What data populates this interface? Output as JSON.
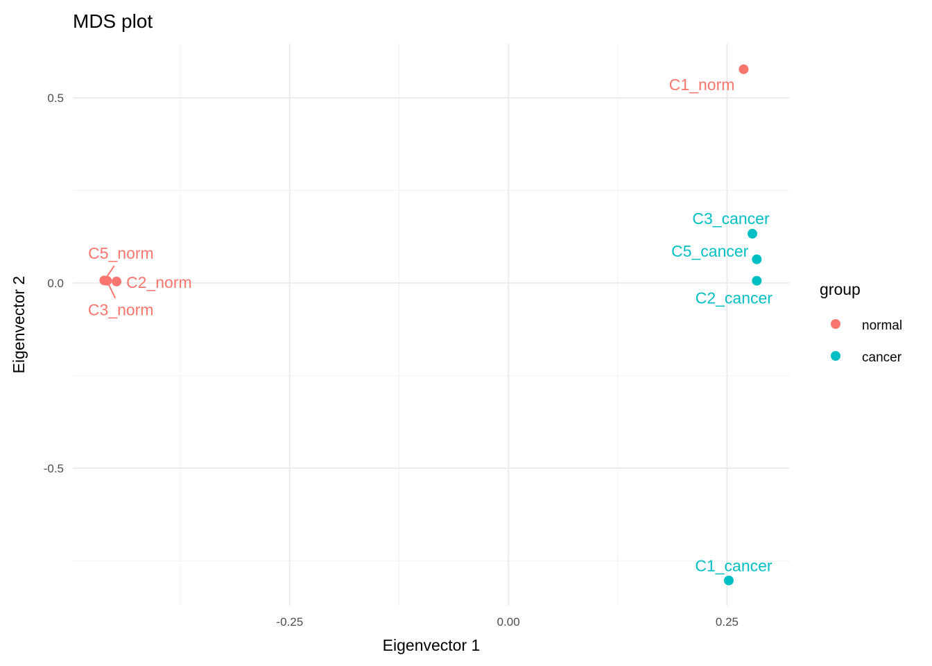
{
  "chart_data": {
    "type": "scatter",
    "title": "MDS plot",
    "xlabel": "Eigenvector 1",
    "ylabel": "Eigenvector 2",
    "xlim": [
      -0.498,
      0.321
    ],
    "ylim": [
      -0.871,
      0.646
    ],
    "x_ticks": [
      -0.25,
      0.0,
      0.25
    ],
    "x_tick_labels": [
      "-0.25",
      "0.00",
      "0.25"
    ],
    "y_ticks": [
      0.5,
      0.0,
      -0.5
    ],
    "y_tick_labels": [
      "0.5",
      "0.0",
      "-0.5"
    ],
    "grid": true,
    "legend": {
      "title": "group",
      "position": "right",
      "entries": [
        "normal",
        "cancer"
      ]
    },
    "colors": {
      "normal": "#F8766D",
      "cancer": "#00BFC4"
    },
    "points": [
      {
        "label": "C1_norm",
        "group": "normal",
        "x": 0.269,
        "y": 0.577
      },
      {
        "label": "C5_norm",
        "group": "normal",
        "x": -0.462,
        "y": 0.007
      },
      {
        "label": "C3_norm",
        "group": "normal",
        "x": -0.459,
        "y": 0.006
      },
      {
        "label": "C2_norm",
        "group": "normal",
        "x": -0.448,
        "y": 0.004
      },
      {
        "label": "C3_cancer",
        "group": "cancer",
        "x": 0.279,
        "y": 0.133
      },
      {
        "label": "C5_cancer",
        "group": "cancer",
        "x": 0.284,
        "y": 0.064
      },
      {
        "label": "C2_cancer",
        "group": "cancer",
        "x": 0.284,
        "y": 0.006
      },
      {
        "label": "C1_cancer",
        "group": "cancer",
        "x": 0.252,
        "y": -0.803
      }
    ]
  }
}
